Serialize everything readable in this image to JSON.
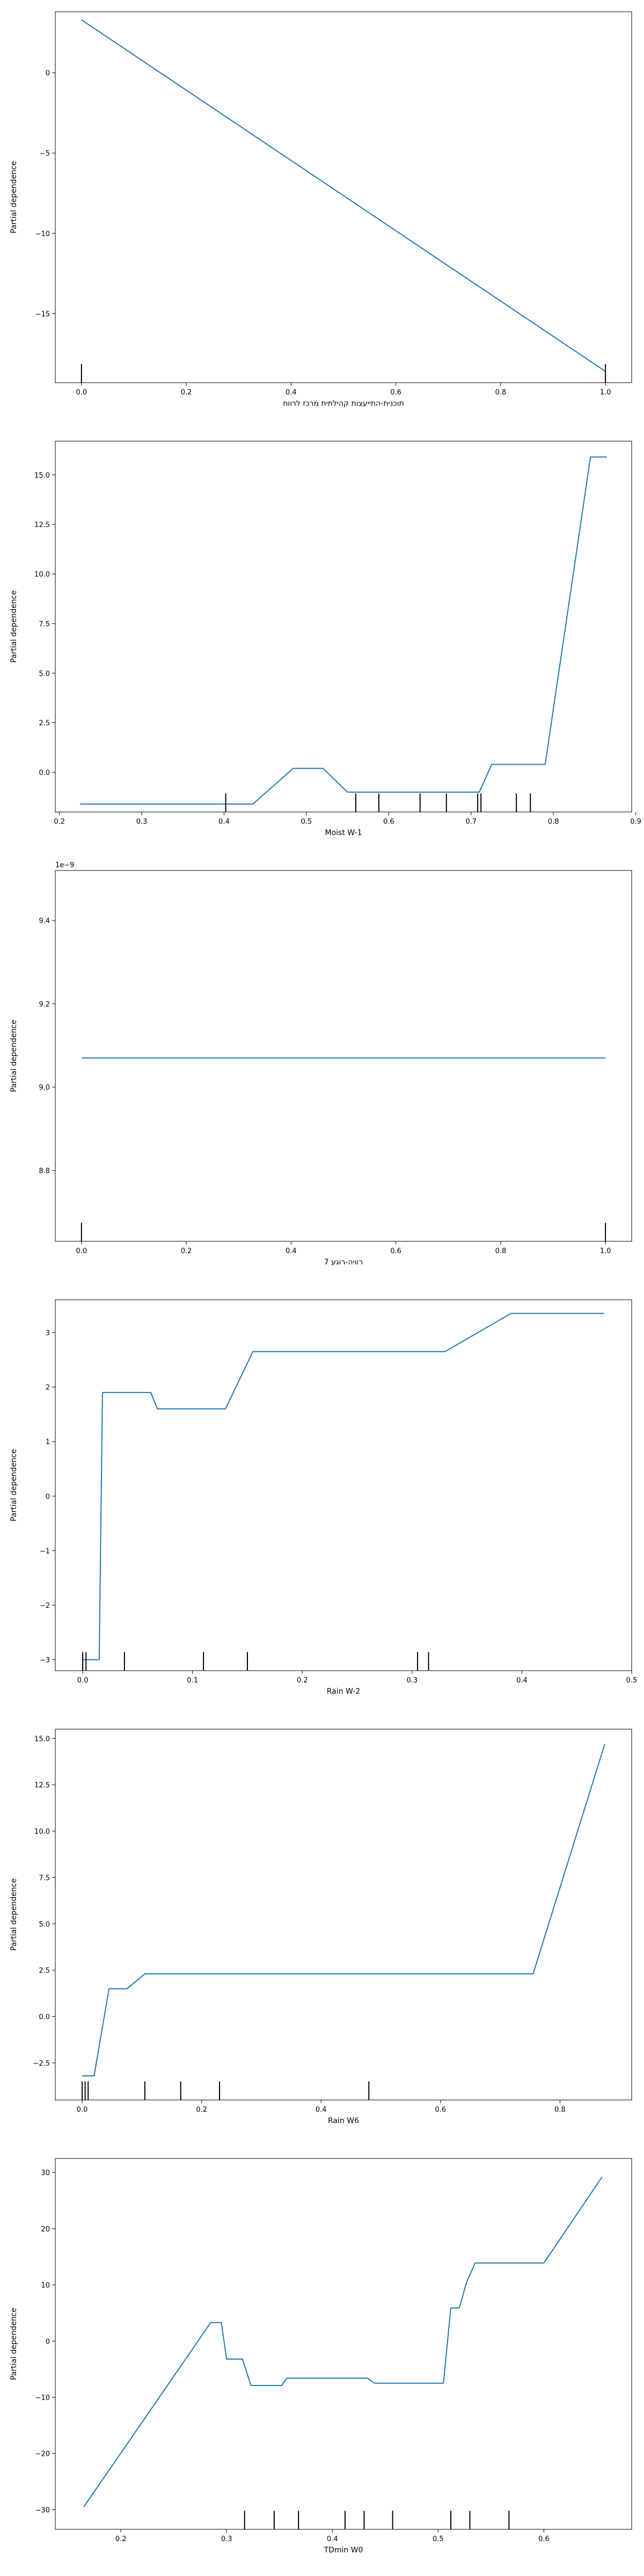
{
  "colors": {
    "line": "#1f77b4",
    "rug": "#000000",
    "axes": "#000000"
  },
  "chart_data": [
    {
      "type": "line",
      "title": "",
      "xlabel": "תוכנית-התייעצות קהילתית מרכז לרווח",
      "ylabel": "Partial dependence",
      "offset_text": "",
      "xlim": [
        -0.05,
        1.05
      ],
      "ylim": [
        -19.3,
        3.8
      ],
      "xticks": [
        0.0,
        0.2,
        0.4,
        0.6,
        0.8,
        1.0
      ],
      "xtick_labels": [
        "0.0",
        "0.2",
        "0.4",
        "0.6",
        "0.8",
        "1.0"
      ],
      "yticks": [
        0,
        -5,
        -10,
        -15
      ],
      "ytick_labels": [
        "0",
        "−5",
        "−10",
        "−15"
      ],
      "grid": false,
      "series": [
        {
          "x": [
            0.0,
            1.0
          ],
          "y": [
            3.3,
            -18.6
          ]
        }
      ],
      "deciles": [
        0.0,
        1.0
      ]
    },
    {
      "type": "line",
      "title": "",
      "xlabel": "Moist W-1",
      "ylabel": "Partial dependence",
      "offset_text": "",
      "xlim": [
        0.195,
        0.895
      ],
      "ylim": [
        -2.0,
        16.7
      ],
      "xticks": [
        0.2,
        0.3,
        0.4,
        0.5,
        0.6,
        0.7,
        0.8,
        0.9
      ],
      "xtick_labels": [
        "0.2",
        "0.3",
        "0.4",
        "0.5",
        "0.6",
        "0.7",
        "0.8",
        "0.9"
      ],
      "yticks": [
        0.0,
        2.5,
        5.0,
        7.5,
        10.0,
        12.5,
        15.0
      ],
      "ytick_labels": [
        "0.0",
        "2.5",
        "5.0",
        "7.5",
        "10.0",
        "12.5",
        "15.0"
      ],
      "grid": false,
      "series": [
        {
          "x": [
            0.225,
            0.435,
            0.484,
            0.52,
            0.55,
            0.71,
            0.725,
            0.79,
            0.845,
            0.865
          ],
          "y": [
            -1.6,
            -1.6,
            0.2,
            0.2,
            -1.0,
            -1.0,
            0.4,
            0.4,
            15.9,
            15.9
          ]
        }
      ],
      "deciles": [
        0.402,
        0.56,
        0.588,
        0.638,
        0.67,
        0.708,
        0.712,
        0.755,
        0.772
      ]
    },
    {
      "type": "line",
      "title": "",
      "xlabel": "7 רוויה-רוגע",
      "ylabel": "Partial dependence",
      "offset_text": "1e−9",
      "xlim": [
        -0.05,
        1.05
      ],
      "ylim": [
        8.63,
        9.52
      ],
      "xticks": [
        0.0,
        0.2,
        0.4,
        0.6,
        0.8,
        1.0
      ],
      "xtick_labels": [
        "0.0",
        "0.2",
        "0.4",
        "0.6",
        "0.8",
        "1.0"
      ],
      "yticks": [
        8.8,
        9.0,
        9.2,
        9.4
      ],
      "ytick_labels": [
        "8.8",
        "9.0",
        "9.2",
        "9.4"
      ],
      "grid": false,
      "series": [
        {
          "x": [
            0.0,
            1.0
          ],
          "y": [
            9.07,
            9.07
          ]
        }
      ],
      "deciles": [
        0.0,
        1.0
      ]
    },
    {
      "type": "line",
      "title": "",
      "xlabel": "Rain W-2",
      "ylabel": "Partial dependence",
      "offset_text": "",
      "xlim": [
        -0.025,
        0.5
      ],
      "ylim": [
        -3.2,
        3.6
      ],
      "xticks": [
        0.0,
        0.1,
        0.2,
        0.3,
        0.4,
        0.5
      ],
      "xtick_labels": [
        "0.0",
        "0.1",
        "0.2",
        "0.3",
        "0.4",
        "0.5"
      ],
      "yticks": [
        -3,
        -2,
        -1,
        0,
        1,
        2,
        3
      ],
      "ytick_labels": [
        "−3",
        "−2",
        "−1",
        "0",
        "1",
        "2",
        "3"
      ],
      "grid": false,
      "series": [
        {
          "x": [
            0.0,
            0.015,
            0.018,
            0.062,
            0.068,
            0.13,
            0.155,
            0.33,
            0.39,
            0.475
          ],
          "y": [
            -3.0,
            -3.0,
            1.9,
            1.9,
            1.6,
            1.6,
            2.65,
            2.65,
            3.35,
            3.35
          ]
        }
      ],
      "deciles": [
        0.0,
        0.003,
        0.038,
        0.11,
        0.15,
        0.305,
        0.315
      ]
    },
    {
      "type": "line",
      "title": "",
      "xlabel": "Rain W6",
      "ylabel": "Partial dependence",
      "offset_text": "",
      "xlim": [
        -0.045,
        0.92
      ],
      "ylim": [
        -4.5,
        15.5
      ],
      "xticks": [
        0.0,
        0.2,
        0.4,
        0.6,
        0.8
      ],
      "xtick_labels": [
        "0.0",
        "0.2",
        "0.4",
        "0.6",
        "0.8"
      ],
      "yticks": [
        -2.5,
        0.0,
        2.5,
        5.0,
        7.5,
        10.0,
        12.5,
        15.0
      ],
      "ytick_labels": [
        "−2.5",
        "0.0",
        "2.5",
        "5.0",
        "7.5",
        "10.0",
        "12.5",
        "15.0"
      ],
      "grid": false,
      "series": [
        {
          "x": [
            0.0,
            0.02,
            0.045,
            0.075,
            0.105,
            0.755,
            0.875
          ],
          "y": [
            -3.2,
            -3.2,
            1.5,
            1.5,
            2.3,
            2.3,
            14.7
          ]
        }
      ],
      "deciles": [
        0.0,
        0.005,
        0.01,
        0.105,
        0.165,
        0.23,
        0.48
      ]
    },
    {
      "type": "line",
      "title": "",
      "xlabel": "TDmin W0",
      "ylabel": "Partial dependence",
      "offset_text": "",
      "xlim": [
        0.138,
        0.683
      ],
      "ylim": [
        -33.5,
        32.5
      ],
      "xticks": [
        0.2,
        0.3,
        0.4,
        0.5,
        0.6
      ],
      "xtick_labels": [
        "0.2",
        "0.3",
        "0.4",
        "0.5",
        "0.6"
      ],
      "yticks": [
        -30,
        -20,
        -10,
        0,
        10,
        20,
        30
      ],
      "ytick_labels": [
        "−30",
        "−20",
        "−10",
        "0",
        "10",
        "20",
        "30"
      ],
      "grid": false,
      "series": [
        {
          "x": [
            0.165,
            0.285,
            0.295,
            0.3,
            0.315,
            0.323,
            0.352,
            0.357,
            0.433,
            0.44,
            0.505,
            0.512,
            0.52,
            0.527,
            0.535,
            0.6,
            0.655
          ],
          "y": [
            -29.5,
            3.3,
            3.3,
            -3.2,
            -3.2,
            -7.9,
            -7.9,
            -6.6,
            -6.6,
            -7.5,
            -7.5,
            5.9,
            5.9,
            10.5,
            13.9,
            13.9,
            29.2
          ]
        }
      ],
      "deciles": [
        0.317,
        0.345,
        0.368,
        0.412,
        0.43,
        0.457,
        0.512,
        0.53,
        0.567
      ]
    }
  ]
}
